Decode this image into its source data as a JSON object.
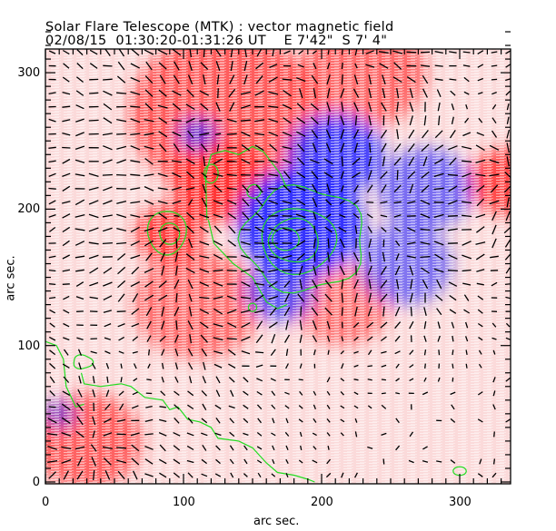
{
  "title": {
    "line1": "Solar Flare Telescope (MTK) : vector magnetic field",
    "line2": "02/08/15  01:30:20-01:31:26 UT    E 7'42\"  S 7' 4\""
  },
  "colors": {
    "positive_polarity": "#ff3333",
    "negative_polarity": "#2a2aff",
    "contour": "#22dd22",
    "vector": "#000000"
  },
  "chart_data": {
    "type": "heatmap",
    "title": "Solar Flare Telescope (MTK) : vector magnetic field",
    "subtitle": "02/08/15  01:30:20-01:31:26 UT    E 7'42\"  S 7' 4\"",
    "xlabel": "arc sec.",
    "ylabel": "arc sec.",
    "xlim": [
      0,
      337
    ],
    "ylim": [
      0,
      335
    ],
    "x_ticks": [
      0,
      100,
      200,
      300
    ],
    "y_ticks": [
      0,
      100,
      200,
      300
    ],
    "x_tick_labels": [
      "0",
      "100",
      "200",
      "300"
    ],
    "y_tick_labels": [
      "0",
      "100",
      "200",
      "300"
    ],
    "minor_tick_step": 10,
    "grid": false,
    "legend": "none",
    "colormap": "red = positive line-of-sight field, blue = negative line-of-sight field",
    "overlays": [
      "green contours of field strength",
      "black transverse field vectors"
    ],
    "regions": [
      {
        "polarity": "positive",
        "x": 125,
        "y": 220,
        "radius": 30,
        "strength": 1.0
      },
      {
        "polarity": "positive",
        "x": 90,
        "y": 182,
        "radius": 22,
        "strength": 0.9
      },
      {
        "polarity": "positive",
        "x": 130,
        "y": 270,
        "radius": 60,
        "strength": 0.65
      },
      {
        "polarity": "positive",
        "x": 230,
        "y": 300,
        "radius": 40,
        "strength": 0.5
      },
      {
        "polarity": "positive",
        "x": 335,
        "y": 220,
        "radius": 25,
        "strength": 0.85
      },
      {
        "polarity": "positive",
        "x": 30,
        "y": 30,
        "radius": 35,
        "strength": 0.6
      },
      {
        "polarity": "positive",
        "x": 110,
        "y": 130,
        "radius": 40,
        "strength": 0.45
      },
      {
        "polarity": "positive",
        "x": 215,
        "y": 130,
        "radius": 30,
        "strength": 0.4
      },
      {
        "polarity": "negative",
        "x": 185,
        "y": 190,
        "radius": 40,
        "strength": 1.0
      },
      {
        "polarity": "negative",
        "x": 210,
        "y": 240,
        "radius": 30,
        "strength": 0.85
      },
      {
        "polarity": "negative",
        "x": 170,
        "y": 140,
        "radius": 22,
        "strength": 0.6
      },
      {
        "polarity": "negative",
        "x": 110,
        "y": 255,
        "radius": 12,
        "strength": 0.6
      },
      {
        "polarity": "negative",
        "x": 275,
        "y": 215,
        "radius": 30,
        "strength": 0.45
      },
      {
        "polarity": "negative",
        "x": 260,
        "y": 160,
        "radius": 30,
        "strength": 0.4
      },
      {
        "polarity": "negative",
        "x": 10,
        "y": 50,
        "radius": 10,
        "strength": 0.4
      }
    ]
  }
}
